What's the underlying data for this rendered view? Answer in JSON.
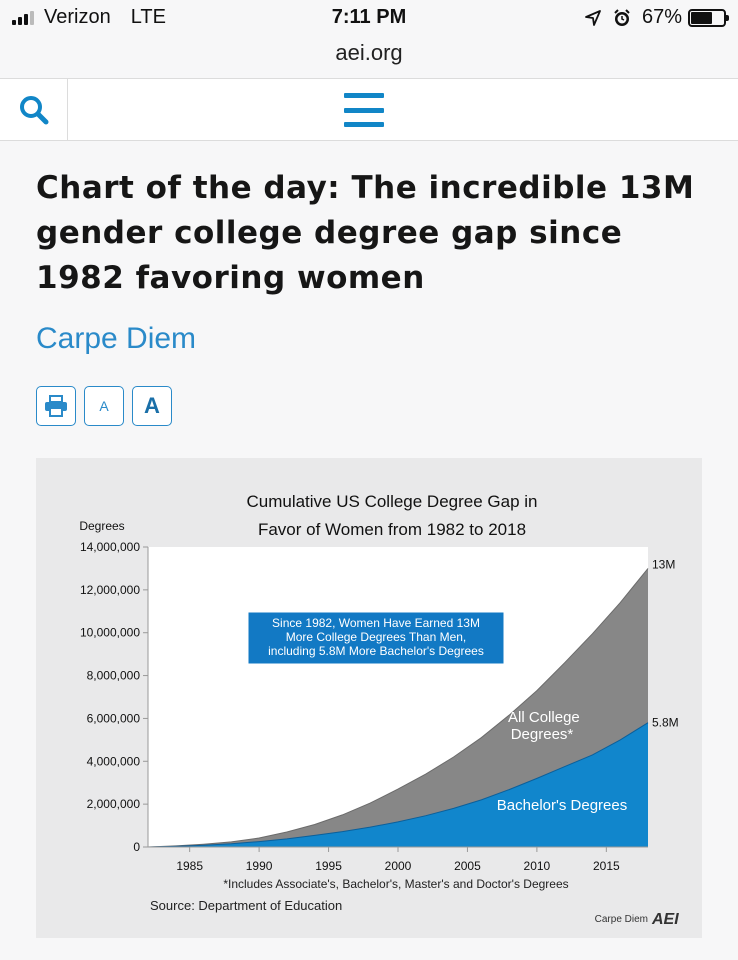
{
  "status": {
    "carrier": "Verizon",
    "network": "LTE",
    "time": "7:11 PM",
    "url": "aei.org",
    "battery_pct": "67%",
    "battery_level": 0.67
  },
  "nav": {
    "search_icon": "search-icon",
    "menu_icon": "hamburger-menu-icon"
  },
  "article": {
    "title_lines": [
      "Chart of the day: The incredible 13M",
      "gender college degree gap since",
      "1982 favoring women"
    ],
    "category": "Carpe Diem",
    "tools": {
      "print_icon": "printer-icon",
      "font_small": "A",
      "font_large": "A"
    }
  },
  "colors": {
    "accent": "#2a8ac9",
    "all_degrees_area": "#878787",
    "bachelors_area": "#1186cc",
    "callout_bg": "#1279c4"
  },
  "chart_data": {
    "type": "area",
    "title_lines": [
      "Cumulative US College Degree Gap in",
      "Favor of Women from 1982 to 2018"
    ],
    "ylabel": "Degrees",
    "ylim": [
      0,
      14000000
    ],
    "yticks": [
      0,
      2000000,
      4000000,
      6000000,
      8000000,
      10000000,
      12000000,
      14000000
    ],
    "ytick_labels": [
      "0",
      "2,000,000",
      "4,000,000",
      "6,000,000",
      "8,000,000",
      "10,000,000",
      "12,000,000",
      "14,000,000"
    ],
    "xlim": [
      1982,
      2018
    ],
    "xticks": [
      1985,
      1990,
      1995,
      2000,
      2005,
      2010,
      2015
    ],
    "x": [
      1982,
      1984,
      1986,
      1988,
      1990,
      1992,
      1994,
      1996,
      1998,
      2000,
      2002,
      2004,
      2006,
      2008,
      2010,
      2012,
      2014,
      2016,
      2018
    ],
    "series": [
      {
        "name": "All College Degrees*",
        "values": [
          0,
          50000,
          130000,
          240000,
          420000,
          700000,
          1050000,
          1500000,
          2050000,
          2700000,
          3400000,
          4200000,
          5100000,
          6150000,
          7300000,
          8600000,
          9950000,
          11400000,
          13000000
        ]
      },
      {
        "name": "Bachelor's Degrees",
        "values": [
          0,
          30000,
          80000,
          150000,
          250000,
          380000,
          540000,
          720000,
          930000,
          1170000,
          1460000,
          1800000,
          2200000,
          2680000,
          3200000,
          3750000,
          4300000,
          5000000,
          5800000
        ]
      }
    ],
    "end_labels": [
      "13M",
      "5.8M"
    ],
    "callout_lines": [
      "Since 1982, Women Have Earned 13M",
      "More College Degrees Than Men,",
      "including 5.8M More Bachelor's Degrees"
    ],
    "footnote": "*Includes Associate's, Bachelor's, Master's and Doctor's Degrees",
    "source": "Source: Department of Education",
    "brand": "Carpe Diem",
    "brand_logo": "AEI"
  }
}
